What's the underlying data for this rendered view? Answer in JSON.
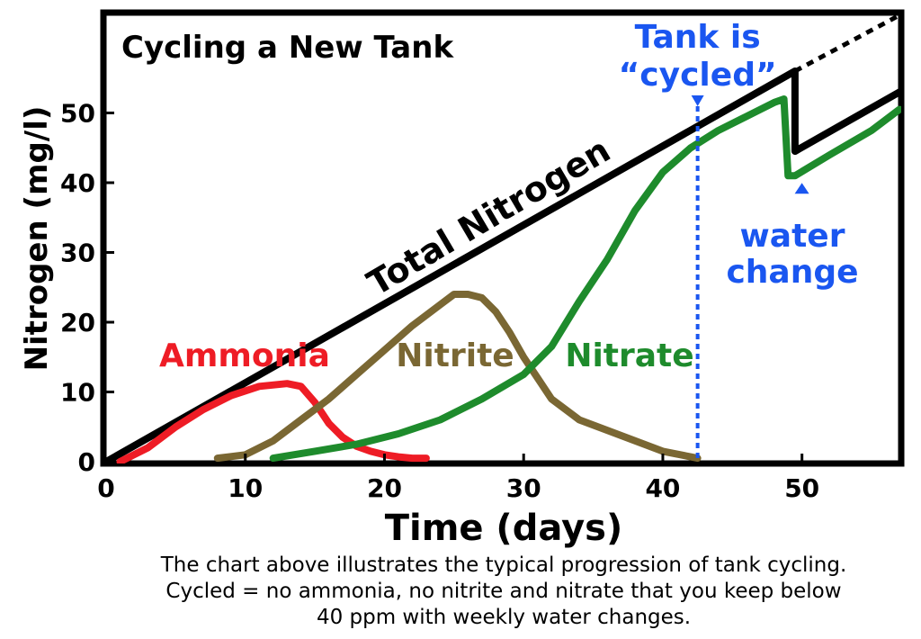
{
  "caption": {
    "line1": "The chart above illustrates the typical progression of tank cycling.",
    "line2": "Cycled = no ammonia, no nitrite and nitrate that you keep below",
    "line3": "40 ppm with weekly water changes."
  },
  "chart_data": {
    "type": "line",
    "title": "Cycling a New Tank",
    "xlabel": "Time (days)",
    "ylabel": "Nitrogen (mg/l)",
    "xlim": [
      0,
      57
    ],
    "ylim": [
      0,
      64
    ],
    "xticks": [
      0,
      10,
      20,
      30,
      40,
      50
    ],
    "yticks": [
      0,
      10,
      20,
      30,
      40,
      50
    ],
    "grid": false,
    "legend": "none",
    "series": [
      {
        "name": "Total Nitrogen",
        "color": "#000000",
        "x": [
          0,
          49.5,
          49.5,
          57
        ],
        "y": [
          0,
          56,
          44.5,
          53
        ]
      },
      {
        "name": "",
        "color": "#000000",
        "style": "dotted",
        "x": [
          49.5,
          57
        ],
        "y": [
          56,
          64
        ]
      },
      {
        "name": "Ammonia",
        "color": "#ee1c25",
        "x": [
          1,
          3,
          5,
          7,
          9,
          11,
          13,
          14,
          15,
          16,
          17,
          18,
          19,
          20,
          21,
          22,
          23
        ],
        "y": [
          0,
          2,
          5,
          7.5,
          9.5,
          10.8,
          11.2,
          10.8,
          8.5,
          5.5,
          3.5,
          2.2,
          1.5,
          1,
          0.7,
          0.5,
          0.5
        ]
      },
      {
        "name": "Nitrite",
        "color": "#7a6733",
        "x": [
          8,
          10,
          12,
          14,
          16,
          18,
          20,
          22,
          24,
          25,
          26,
          27,
          28,
          29,
          30,
          31,
          32,
          34,
          36,
          38,
          40,
          42.5
        ],
        "y": [
          0.5,
          1,
          3,
          6,
          9,
          12.5,
          16,
          19.5,
          22.5,
          24,
          24,
          23.5,
          21.5,
          18.5,
          15,
          12,
          9,
          6,
          4.5,
          3,
          1.5,
          0.5
        ]
      },
      {
        "name": "Nitrate",
        "color": "#1e8b2c",
        "x": [
          12,
          15,
          18,
          21,
          24,
          27,
          30,
          32,
          34,
          36,
          38,
          40,
          42,
          44,
          46,
          48,
          48.7,
          49,
          49.5,
          52,
          55,
          57
        ],
        "y": [
          0.5,
          1.5,
          2.5,
          4,
          6,
          9,
          12.5,
          16.5,
          23,
          29,
          36,
          41.5,
          45,
          47.5,
          49.5,
          51.5,
          52,
          41,
          41,
          44,
          47.5,
          50.5
        ]
      }
    ],
    "annotations": {
      "total_label": "Total Nitrogen",
      "ammonia_label": "Ammonia",
      "nitrite_label": "Nitrite",
      "nitrate_label": "Nitrate",
      "cycled_line1": "Tank is",
      "cycled_line2": "“cycled”",
      "cycled_x": 42.5,
      "water_line1": "water",
      "water_line2": "change",
      "water_x": 49.8,
      "water_y": 41,
      "annotation_color": "#1a56f0"
    }
  }
}
